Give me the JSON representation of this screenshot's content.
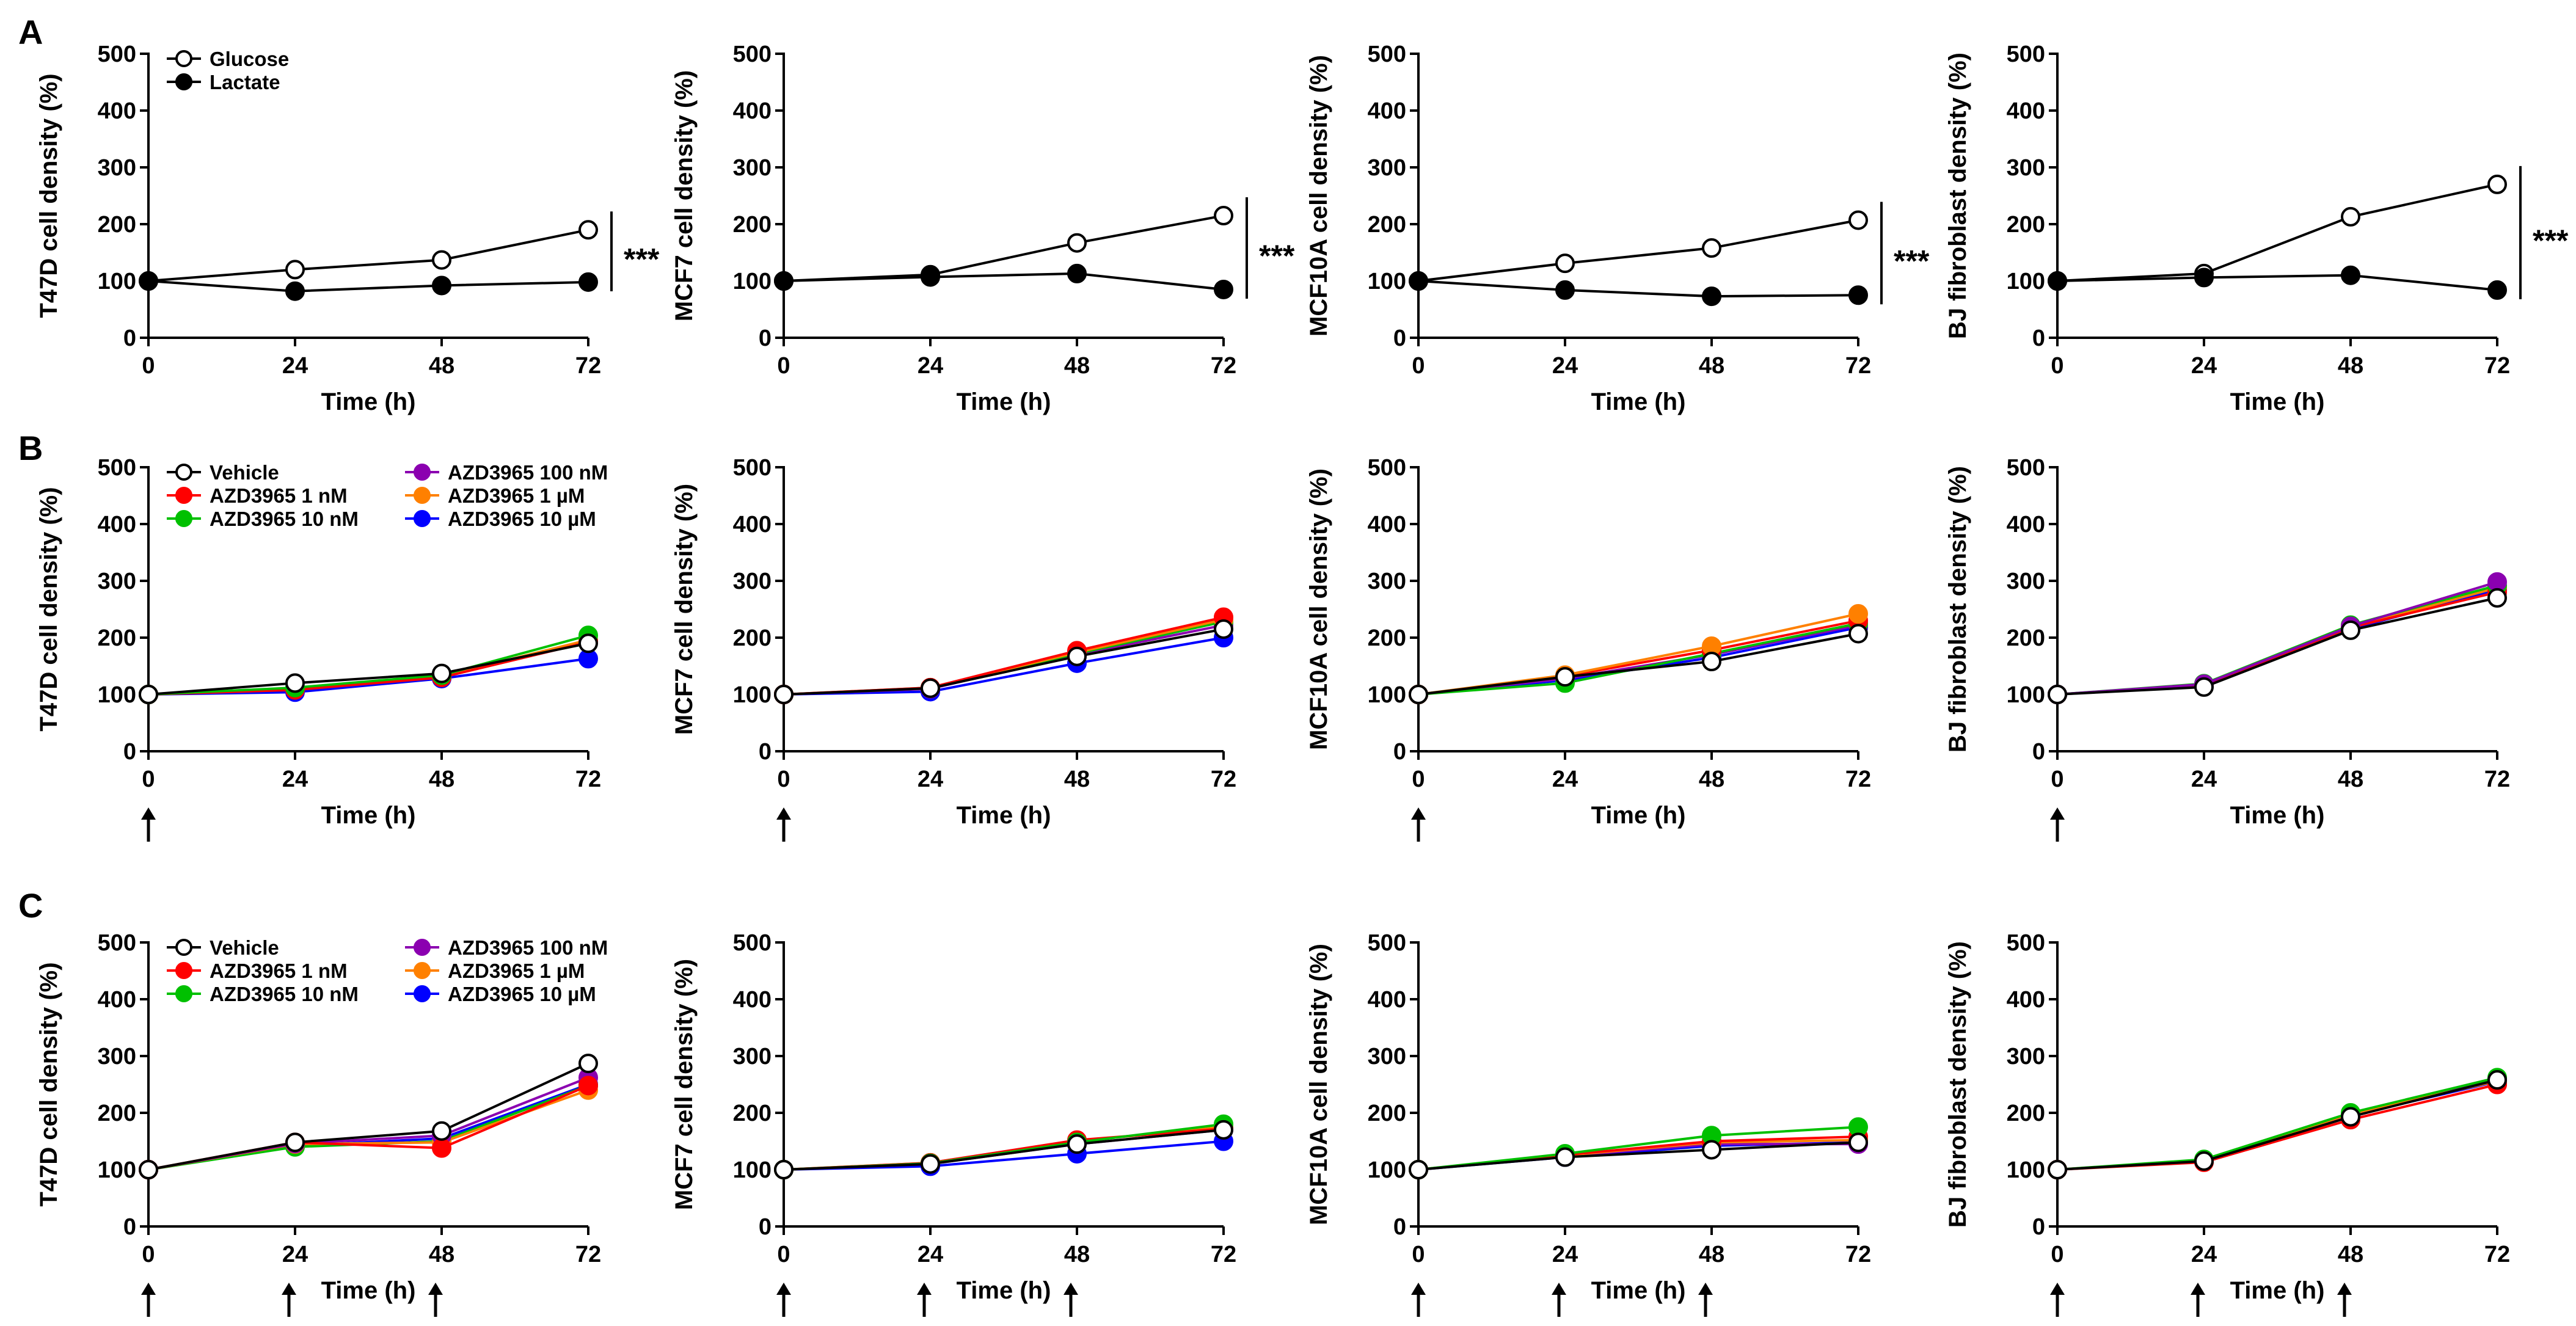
{
  "figure": {
    "panel_letters": [
      "A",
      "B",
      "C"
    ],
    "colors": {
      "Glucose": "#000000",
      "Lactate": "#000000",
      "Vehicle": "#000000",
      "AZD3965 1 nM": "#ff0000",
      "AZD3965 10 nM": "#00c000",
      "AZD3965 100 nM": "#8b00b0",
      "AZD3965 1 µM": "#ff8000",
      "AZD3965 10 µM": "#0000ff"
    }
  },
  "chart_data": [
    {
      "id": "A1",
      "row": "A",
      "col": 0,
      "type": "line",
      "xlabel": "Time (h)",
      "ylabel": "T47D cell density (%)",
      "x": [
        0,
        24,
        48,
        72
      ],
      "xticks": [
        "0",
        "24",
        "48",
        "72"
      ],
      "ylim": [
        0,
        500
      ],
      "yticks": [
        "0",
        "100",
        "200",
        "300",
        "400",
        "500"
      ],
      "legend": [
        "Glucose",
        "Lactate"
      ],
      "significance": "***",
      "series": [
        {
          "name": "Glucose",
          "marker": "open",
          "values": [
            100,
            120,
            137,
            190
          ]
        },
        {
          "name": "Lactate",
          "marker": "filled",
          "values": [
            100,
            82,
            92,
            98
          ]
        }
      ]
    },
    {
      "id": "A2",
      "row": "A",
      "col": 1,
      "type": "line",
      "xlabel": "Time (h)",
      "ylabel": "MCF7 cell density (%)",
      "x": [
        0,
        24,
        48,
        72
      ],
      "xticks": [
        "0",
        "24",
        "48",
        "72"
      ],
      "ylim": [
        0,
        500
      ],
      "yticks": [
        "0",
        "100",
        "200",
        "300",
        "400",
        "500"
      ],
      "significance": "***",
      "series": [
        {
          "name": "Glucose",
          "marker": "open",
          "values": [
            100,
            111,
            167,
            215
          ]
        },
        {
          "name": "Lactate",
          "marker": "filled",
          "values": [
            100,
            107,
            113,
            85
          ]
        }
      ]
    },
    {
      "id": "A3",
      "row": "A",
      "col": 2,
      "type": "line",
      "xlabel": "Time (h)",
      "ylabel": "MCF10A cell density (%)",
      "x": [
        0,
        24,
        48,
        72
      ],
      "xticks": [
        "0",
        "24",
        "48",
        "72"
      ],
      "ylim": [
        0,
        500
      ],
      "yticks": [
        "0",
        "100",
        "200",
        "300",
        "400",
        "500"
      ],
      "significance": "***",
      "series": [
        {
          "name": "Glucose",
          "marker": "open",
          "values": [
            100,
            131,
            158,
            207
          ]
        },
        {
          "name": "Lactate",
          "marker": "filled",
          "values": [
            100,
            84,
            73,
            75
          ]
        }
      ]
    },
    {
      "id": "A4",
      "row": "A",
      "col": 3,
      "type": "line",
      "xlabel": "Time (h)",
      "ylabel": "BJ fibroblast density (%)",
      "x": [
        0,
        24,
        48,
        72
      ],
      "xticks": [
        "0",
        "24",
        "48",
        "72"
      ],
      "ylim": [
        0,
        500
      ],
      "yticks": [
        "0",
        "100",
        "200",
        "300",
        "400",
        "500"
      ],
      "significance": "***",
      "series": [
        {
          "name": "Glucose",
          "marker": "open",
          "values": [
            100,
            113,
            213,
            270
          ]
        },
        {
          "name": "Lactate",
          "marker": "filled",
          "values": [
            100,
            106,
            110,
            84
          ]
        }
      ]
    },
    {
      "id": "B1",
      "row": "B",
      "col": 0,
      "type": "line",
      "xlabel": "Time (h)",
      "ylabel": "T47D cell density (%)",
      "x": [
        0,
        24,
        48,
        72
      ],
      "xticks": [
        "0",
        "24",
        "48",
        "72"
      ],
      "ylim": [
        0,
        500
      ],
      "yticks": [
        "0",
        "100",
        "200",
        "300",
        "400",
        "500"
      ],
      "legend": [
        "Vehicle",
        "AZD3965 1 nM",
        "AZD3965 10 nM",
        "AZD3965 100 nM",
        "AZD3965 1 µM",
        "AZD3965 10 µM"
      ],
      "arrows": [
        0
      ],
      "series": [
        {
          "name": "AZD3965 10 µM",
          "marker": "filled",
          "values": [
            100,
            104,
            128,
            163
          ]
        },
        {
          "name": "AZD3965 100 nM",
          "marker": "filled",
          "values": [
            100,
            110,
            132,
            195
          ]
        },
        {
          "name": "AZD3965 1 µM",
          "marker": "filled",
          "values": [
            100,
            110,
            132,
            196
          ]
        },
        {
          "name": "AZD3965 1 nM",
          "marker": "filled",
          "values": [
            100,
            108,
            130,
            192
          ]
        },
        {
          "name": "AZD3965 10 nM",
          "marker": "filled",
          "values": [
            100,
            112,
            134,
            204
          ]
        },
        {
          "name": "Vehicle",
          "marker": "open",
          "values": [
            100,
            120,
            137,
            190
          ]
        }
      ]
    },
    {
      "id": "B2",
      "row": "B",
      "col": 1,
      "type": "line",
      "xlabel": "Time (h)",
      "ylabel": "MCF7 cell density (%)",
      "x": [
        0,
        24,
        48,
        72
      ],
      "xticks": [
        "0",
        "24",
        "48",
        "72"
      ],
      "ylim": [
        0,
        500
      ],
      "yticks": [
        "0",
        "100",
        "200",
        "300",
        "400",
        "500"
      ],
      "arrows": [
        0
      ],
      "series": [
        {
          "name": "AZD3965 10 µM",
          "marker": "filled",
          "values": [
            100,
            105,
            155,
            200
          ]
        },
        {
          "name": "AZD3965 100 nM",
          "marker": "filled",
          "values": [
            100,
            110,
            170,
            222
          ]
        },
        {
          "name": "AZD3965 10 nM",
          "marker": "filled",
          "values": [
            100,
            111,
            172,
            228
          ]
        },
        {
          "name": "AZD3965 1 µM",
          "marker": "filled",
          "values": [
            100,
            112,
            174,
            232
          ]
        },
        {
          "name": "AZD3965 1 nM",
          "marker": "filled",
          "values": [
            100,
            112,
            177,
            236
          ]
        },
        {
          "name": "Vehicle",
          "marker": "open",
          "values": [
            100,
            111,
            167,
            215
          ]
        }
      ]
    },
    {
      "id": "B3",
      "row": "B",
      "col": 2,
      "type": "line",
      "xlabel": "Time (h)",
      "ylabel": "MCF10A cell density (%)",
      "x": [
        0,
        24,
        48,
        72
      ],
      "xticks": [
        "0",
        "24",
        "48",
        "72"
      ],
      "ylim": [
        0,
        500
      ],
      "yticks": [
        "0",
        "100",
        "200",
        "300",
        "400",
        "500"
      ],
      "arrows": [
        0
      ],
      "series": [
        {
          "name": "AZD3965 10 µM",
          "marker": "filled",
          "values": [
            100,
            125,
            165,
            218
          ]
        },
        {
          "name": "AZD3965 100 nM",
          "marker": "filled",
          "values": [
            100,
            128,
            170,
            222
          ]
        },
        {
          "name": "AZD3965 10 nM",
          "marker": "filled",
          "values": [
            100,
            120,
            172,
            225
          ]
        },
        {
          "name": "AZD3965 1 nM",
          "marker": "filled",
          "values": [
            100,
            132,
            178,
            230
          ]
        },
        {
          "name": "AZD3965 1 µM",
          "marker": "filled",
          "values": [
            100,
            134,
            185,
            242
          ]
        },
        {
          "name": "Vehicle",
          "marker": "open",
          "values": [
            100,
            131,
            158,
            207
          ]
        }
      ]
    },
    {
      "id": "B4",
      "row": "B",
      "col": 3,
      "type": "line",
      "xlabel": "Time (h)",
      "ylabel": "BJ fibroblast density (%)",
      "x": [
        0,
        24,
        48,
        72
      ],
      "xticks": [
        "0",
        "24",
        "48",
        "72"
      ],
      "ylim": [
        0,
        500
      ],
      "yticks": [
        "0",
        "100",
        "200",
        "300",
        "400",
        "500"
      ],
      "arrows": [
        0
      ],
      "series": [
        {
          "name": "AZD3965 10 µM",
          "marker": "filled",
          "values": [
            100,
            115,
            215,
            285
          ]
        },
        {
          "name": "AZD3965 1 µM",
          "marker": "filled",
          "values": [
            100,
            116,
            218,
            288
          ]
        },
        {
          "name": "AZD3965 1 nM",
          "marker": "filled",
          "values": [
            100,
            117,
            218,
            280
          ]
        },
        {
          "name": "AZD3965 10 nM",
          "marker": "filled",
          "values": [
            100,
            119,
            222,
            292
          ]
        },
        {
          "name": "AZD3965 100 nM",
          "marker": "filled",
          "values": [
            100,
            118,
            220,
            298
          ]
        },
        {
          "name": "Vehicle",
          "marker": "open",
          "values": [
            100,
            113,
            213,
            270
          ]
        }
      ]
    },
    {
      "id": "C1",
      "row": "C",
      "col": 0,
      "type": "line",
      "xlabel": "Time (h)",
      "ylabel": "T47D cell density (%)",
      "x": [
        0,
        24,
        48,
        72
      ],
      "xticks": [
        "0",
        "24",
        "48",
        "72"
      ],
      "ylim": [
        0,
        500
      ],
      "yticks": [
        "0",
        "100",
        "200",
        "300",
        "400",
        "500"
      ],
      "legend": [
        "Vehicle",
        "AZD3965 1 nM",
        "AZD3965 10 nM",
        "AZD3965 100 nM",
        "AZD3965 1 µM",
        "AZD3965 10 µM"
      ],
      "arrows": [
        0,
        24,
        48
      ],
      "series": [
        {
          "name": "AZD3965 10 µM",
          "marker": "filled",
          "values": [
            100,
            142,
            155,
            250
          ]
        },
        {
          "name": "AZD3965 10 nM",
          "marker": "filled",
          "values": [
            100,
            140,
            150,
            248
          ]
        },
        {
          "name": "AZD3965 1 µM",
          "marker": "filled",
          "values": [
            100,
            145,
            148,
            240
          ]
        },
        {
          "name": "AZD3965 100 nM",
          "marker": "filled",
          "values": [
            100,
            146,
            160,
            262
          ]
        },
        {
          "name": "AZD3965 1 nM",
          "marker": "filled",
          "values": [
            100,
            148,
            138,
            248
          ]
        },
        {
          "name": "Vehicle",
          "marker": "open",
          "values": [
            100,
            148,
            168,
            287
          ]
        }
      ]
    },
    {
      "id": "C2",
      "row": "C",
      "col": 1,
      "type": "line",
      "xlabel": "Time (h)",
      "ylabel": "MCF7 cell density (%)",
      "x": [
        0,
        24,
        48,
        72
      ],
      "xticks": [
        "0",
        "24",
        "48",
        "72"
      ],
      "ylim": [
        0,
        500
      ],
      "yticks": [
        "0",
        "100",
        "200",
        "300",
        "400",
        "500"
      ],
      "arrows": [
        0,
        24,
        48
      ],
      "series": [
        {
          "name": "AZD3965 10 µM",
          "marker": "filled",
          "values": [
            100,
            106,
            128,
            150
          ]
        },
        {
          "name": "AZD3965 100 nM",
          "marker": "filled",
          "values": [
            100,
            110,
            145,
            170
          ]
        },
        {
          "name": "AZD3965 1 µM",
          "marker": "filled",
          "values": [
            100,
            112,
            150,
            175
          ]
        },
        {
          "name": "AZD3965 1 nM",
          "marker": "filled",
          "values": [
            100,
            112,
            152,
            172
          ]
        },
        {
          "name": "AZD3965 10 nM",
          "marker": "filled",
          "values": [
            100,
            111,
            148,
            180
          ]
        },
        {
          "name": "Vehicle",
          "marker": "open",
          "values": [
            100,
            110,
            145,
            170
          ]
        }
      ]
    },
    {
      "id": "C3",
      "row": "C",
      "col": 2,
      "type": "line",
      "xlabel": "Time (h)",
      "ylabel": "MCF10A cell density (%)",
      "x": [
        0,
        24,
        48,
        72
      ],
      "xticks": [
        "0",
        "24",
        "48",
        "72"
      ],
      "ylim": [
        0,
        500
      ],
      "yticks": [
        "0",
        "100",
        "200",
        "300",
        "400",
        "500"
      ],
      "arrows": [
        0,
        24,
        48
      ],
      "series": [
        {
          "name": "AZD3965 10 µM",
          "marker": "filled",
          "values": [
            100,
            122,
            142,
            148
          ]
        },
        {
          "name": "AZD3965 100 nM",
          "marker": "filled",
          "values": [
            100,
            124,
            145,
            145
          ]
        },
        {
          "name": "AZD3965 1 µM",
          "marker": "filled",
          "values": [
            100,
            125,
            148,
            152
          ]
        },
        {
          "name": "AZD3965 1 nM",
          "marker": "filled",
          "values": [
            100,
            126,
            150,
            158
          ]
        },
        {
          "name": "AZD3965 10 nM",
          "marker": "filled",
          "values": [
            100,
            128,
            160,
            175
          ]
        },
        {
          "name": "Vehicle",
          "marker": "open",
          "values": [
            100,
            122,
            135,
            148
          ]
        }
      ]
    },
    {
      "id": "C4",
      "row": "C",
      "col": 3,
      "type": "line",
      "xlabel": "Time (h)",
      "ylabel": "BJ fibroblast density (%)",
      "x": [
        0,
        24,
        48,
        72
      ],
      "xticks": [
        "0",
        "24",
        "48",
        "72"
      ],
      "ylim": [
        0,
        500
      ],
      "yticks": [
        "0",
        "100",
        "200",
        "300",
        "400",
        "500"
      ],
      "arrows": [
        0,
        24,
        48
      ],
      "series": [
        {
          "name": "AZD3965 10 µM",
          "marker": "filled",
          "values": [
            100,
            115,
            195,
            255
          ]
        },
        {
          "name": "AZD3965 100 nM",
          "marker": "filled",
          "values": [
            100,
            116,
            196,
            258
          ]
        },
        {
          "name": "AZD3965 1 µM",
          "marker": "filled",
          "values": [
            100,
            117,
            198,
            256
          ]
        },
        {
          "name": "AZD3965 10 nM",
          "marker": "filled",
          "values": [
            100,
            118,
            200,
            262
          ]
        },
        {
          "name": "AZD3965 1 nM",
          "marker": "filled",
          "values": [
            100,
            113,
            188,
            250
          ]
        },
        {
          "name": "Vehicle",
          "marker": "open",
          "values": [
            100,
            115,
            193,
            258
          ]
        }
      ]
    }
  ]
}
